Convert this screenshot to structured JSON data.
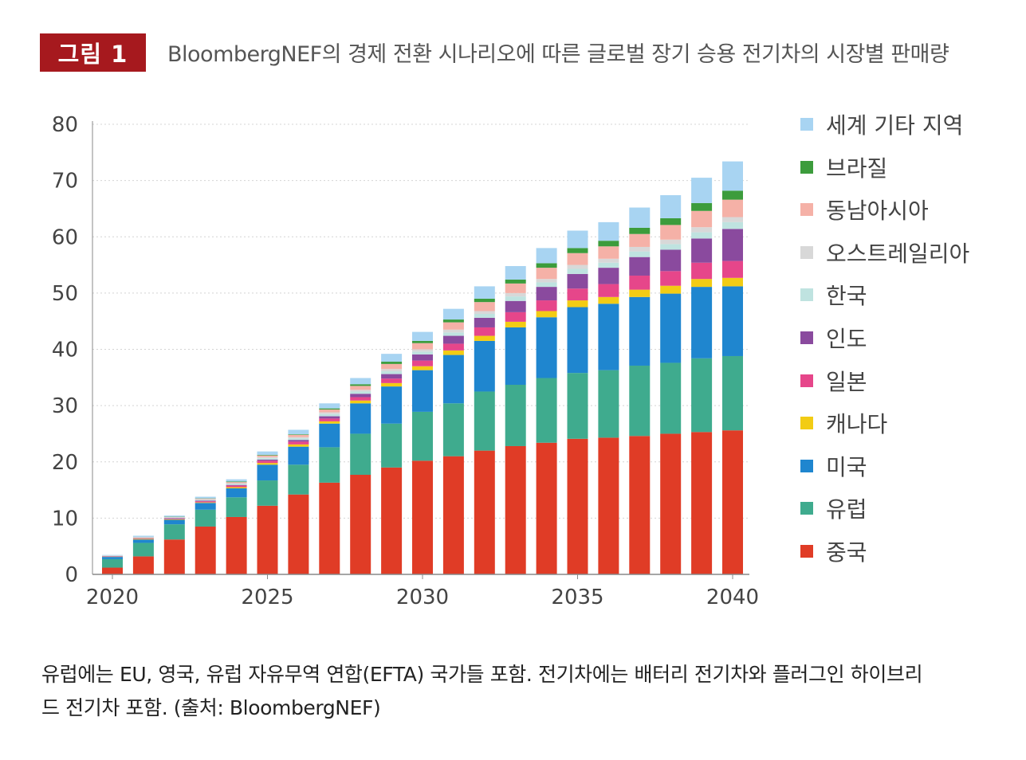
{
  "figure": {
    "badge": "그림 1",
    "title": "BloombergNEF의 경제 전환 시나리오에 따른 글로벌 장기 승용 전기차의 시장별 판매량"
  },
  "caption": {
    "line1": "유럽에는 EU, 영국, 유럽 자유무역 연합(EFTA) 국가들 포함. 전기차에는 배터리 전기차와 플러그인 하이브리",
    "line2": "드 전기차 포함. (출처: BloombergNEF)"
  },
  "chart_data": {
    "type": "bar",
    "stacked": true,
    "title": "BloombergNEF의 경제 전환 시나리오에 따른 글로벌 장기 승용 전기차의 시장별 판매량",
    "xlabel": "",
    "ylabel": "",
    "ylim": [
      0,
      80
    ],
    "yticks": [
      0,
      10,
      20,
      30,
      40,
      50,
      60,
      70,
      80
    ],
    "xtick_labels": [
      "2020",
      "2025",
      "2030",
      "2035",
      "2040"
    ],
    "grid": true,
    "legend_position": "right",
    "categories": [
      "2020",
      "2021",
      "2022",
      "2023",
      "2024",
      "2025",
      "2026",
      "2027",
      "2028",
      "2029",
      "2030",
      "2031",
      "2032",
      "2033",
      "2034",
      "2035",
      "2036",
      "2037",
      "2038",
      "2039",
      "2040"
    ],
    "series": [
      {
        "name": "중국",
        "color": "#e03c26",
        "values": [
          1.2,
          3.2,
          6.2,
          8.5,
          10.2,
          12.2,
          14.2,
          16.3,
          17.7,
          19.0,
          20.2,
          21.0,
          22.0,
          22.8,
          23.4,
          24.1,
          24.3,
          24.6,
          25.0,
          25.3,
          25.6
        ]
      },
      {
        "name": "유럽",
        "color": "#3fab8e",
        "values": [
          1.5,
          2.4,
          2.7,
          3.0,
          3.5,
          4.5,
          5.3,
          6.3,
          7.3,
          7.8,
          8.7,
          9.4,
          10.5,
          10.9,
          11.5,
          11.7,
          12.0,
          12.5,
          12.6,
          13.1,
          13.2
        ]
      },
      {
        "name": "미국",
        "color": "#1f86cf",
        "values": [
          0.4,
          0.6,
          0.8,
          1.2,
          1.6,
          2.8,
          3.2,
          4.2,
          5.4,
          6.6,
          7.4,
          8.6,
          9.0,
          10.2,
          10.8,
          11.7,
          11.8,
          12.2,
          12.3,
          12.7,
          12.4
        ]
      },
      {
        "name": "캐나다",
        "color": "#f2cc14",
        "values": [
          0.05,
          0.1,
          0.1,
          0.1,
          0.2,
          0.3,
          0.4,
          0.4,
          0.5,
          0.6,
          0.7,
          0.8,
          0.9,
          1.0,
          1.1,
          1.2,
          1.2,
          1.3,
          1.4,
          1.4,
          1.5
        ]
      },
      {
        "name": "일본",
        "color": "#e6468a",
        "values": [
          0.05,
          0.1,
          0.1,
          0.2,
          0.3,
          0.4,
          0.5,
          0.5,
          0.6,
          0.8,
          1.0,
          1.2,
          1.5,
          1.7,
          1.9,
          2.1,
          2.3,
          2.5,
          2.6,
          2.9,
          3.0
        ]
      },
      {
        "name": "인도",
        "color": "#8a4a9e",
        "values": [
          0.05,
          0.05,
          0.1,
          0.1,
          0.1,
          0.2,
          0.3,
          0.4,
          0.6,
          0.8,
          1.1,
          1.4,
          1.7,
          2.0,
          2.4,
          2.6,
          2.9,
          3.3,
          3.8,
          4.3,
          5.7
        ]
      },
      {
        "name": "한국",
        "color": "#bfe3e0",
        "values": [
          0.05,
          0.1,
          0.1,
          0.15,
          0.2,
          0.25,
          0.3,
          0.4,
          0.4,
          0.5,
          0.5,
          0.6,
          0.7,
          0.8,
          0.8,
          0.9,
          0.9,
          1.0,
          1.0,
          1.1,
          1.2
        ]
      },
      {
        "name": "오스트레일리아",
        "color": "#d8d8d8",
        "values": [
          0.02,
          0.05,
          0.05,
          0.1,
          0.1,
          0.2,
          0.2,
          0.3,
          0.3,
          0.4,
          0.4,
          0.5,
          0.5,
          0.6,
          0.6,
          0.7,
          0.7,
          0.8,
          0.8,
          0.9,
          0.9
        ]
      },
      {
        "name": "동남아시아",
        "color": "#f5b1a7",
        "values": [
          0.02,
          0.05,
          0.05,
          0.1,
          0.2,
          0.3,
          0.4,
          0.5,
          0.7,
          0.9,
          1.1,
          1.3,
          1.6,
          1.7,
          2.0,
          2.1,
          2.2,
          2.3,
          2.6,
          2.9,
          3.1
        ]
      },
      {
        "name": "브라질",
        "color": "#3c9c3c",
        "values": [
          0.01,
          0.02,
          0.05,
          0.05,
          0.1,
          0.1,
          0.1,
          0.2,
          0.3,
          0.4,
          0.4,
          0.5,
          0.6,
          0.7,
          0.8,
          0.9,
          1.0,
          1.1,
          1.2,
          1.4,
          1.6
        ]
      },
      {
        "name": "세계 기타 지역",
        "color": "#a8d4f2",
        "values": [
          0.1,
          0.2,
          0.2,
          0.3,
          0.4,
          0.6,
          0.8,
          0.9,
          1.1,
          1.4,
          1.6,
          1.9,
          2.2,
          2.4,
          2.7,
          3.1,
          3.3,
          3.6,
          4.1,
          4.5,
          5.2
        ]
      }
    ]
  }
}
